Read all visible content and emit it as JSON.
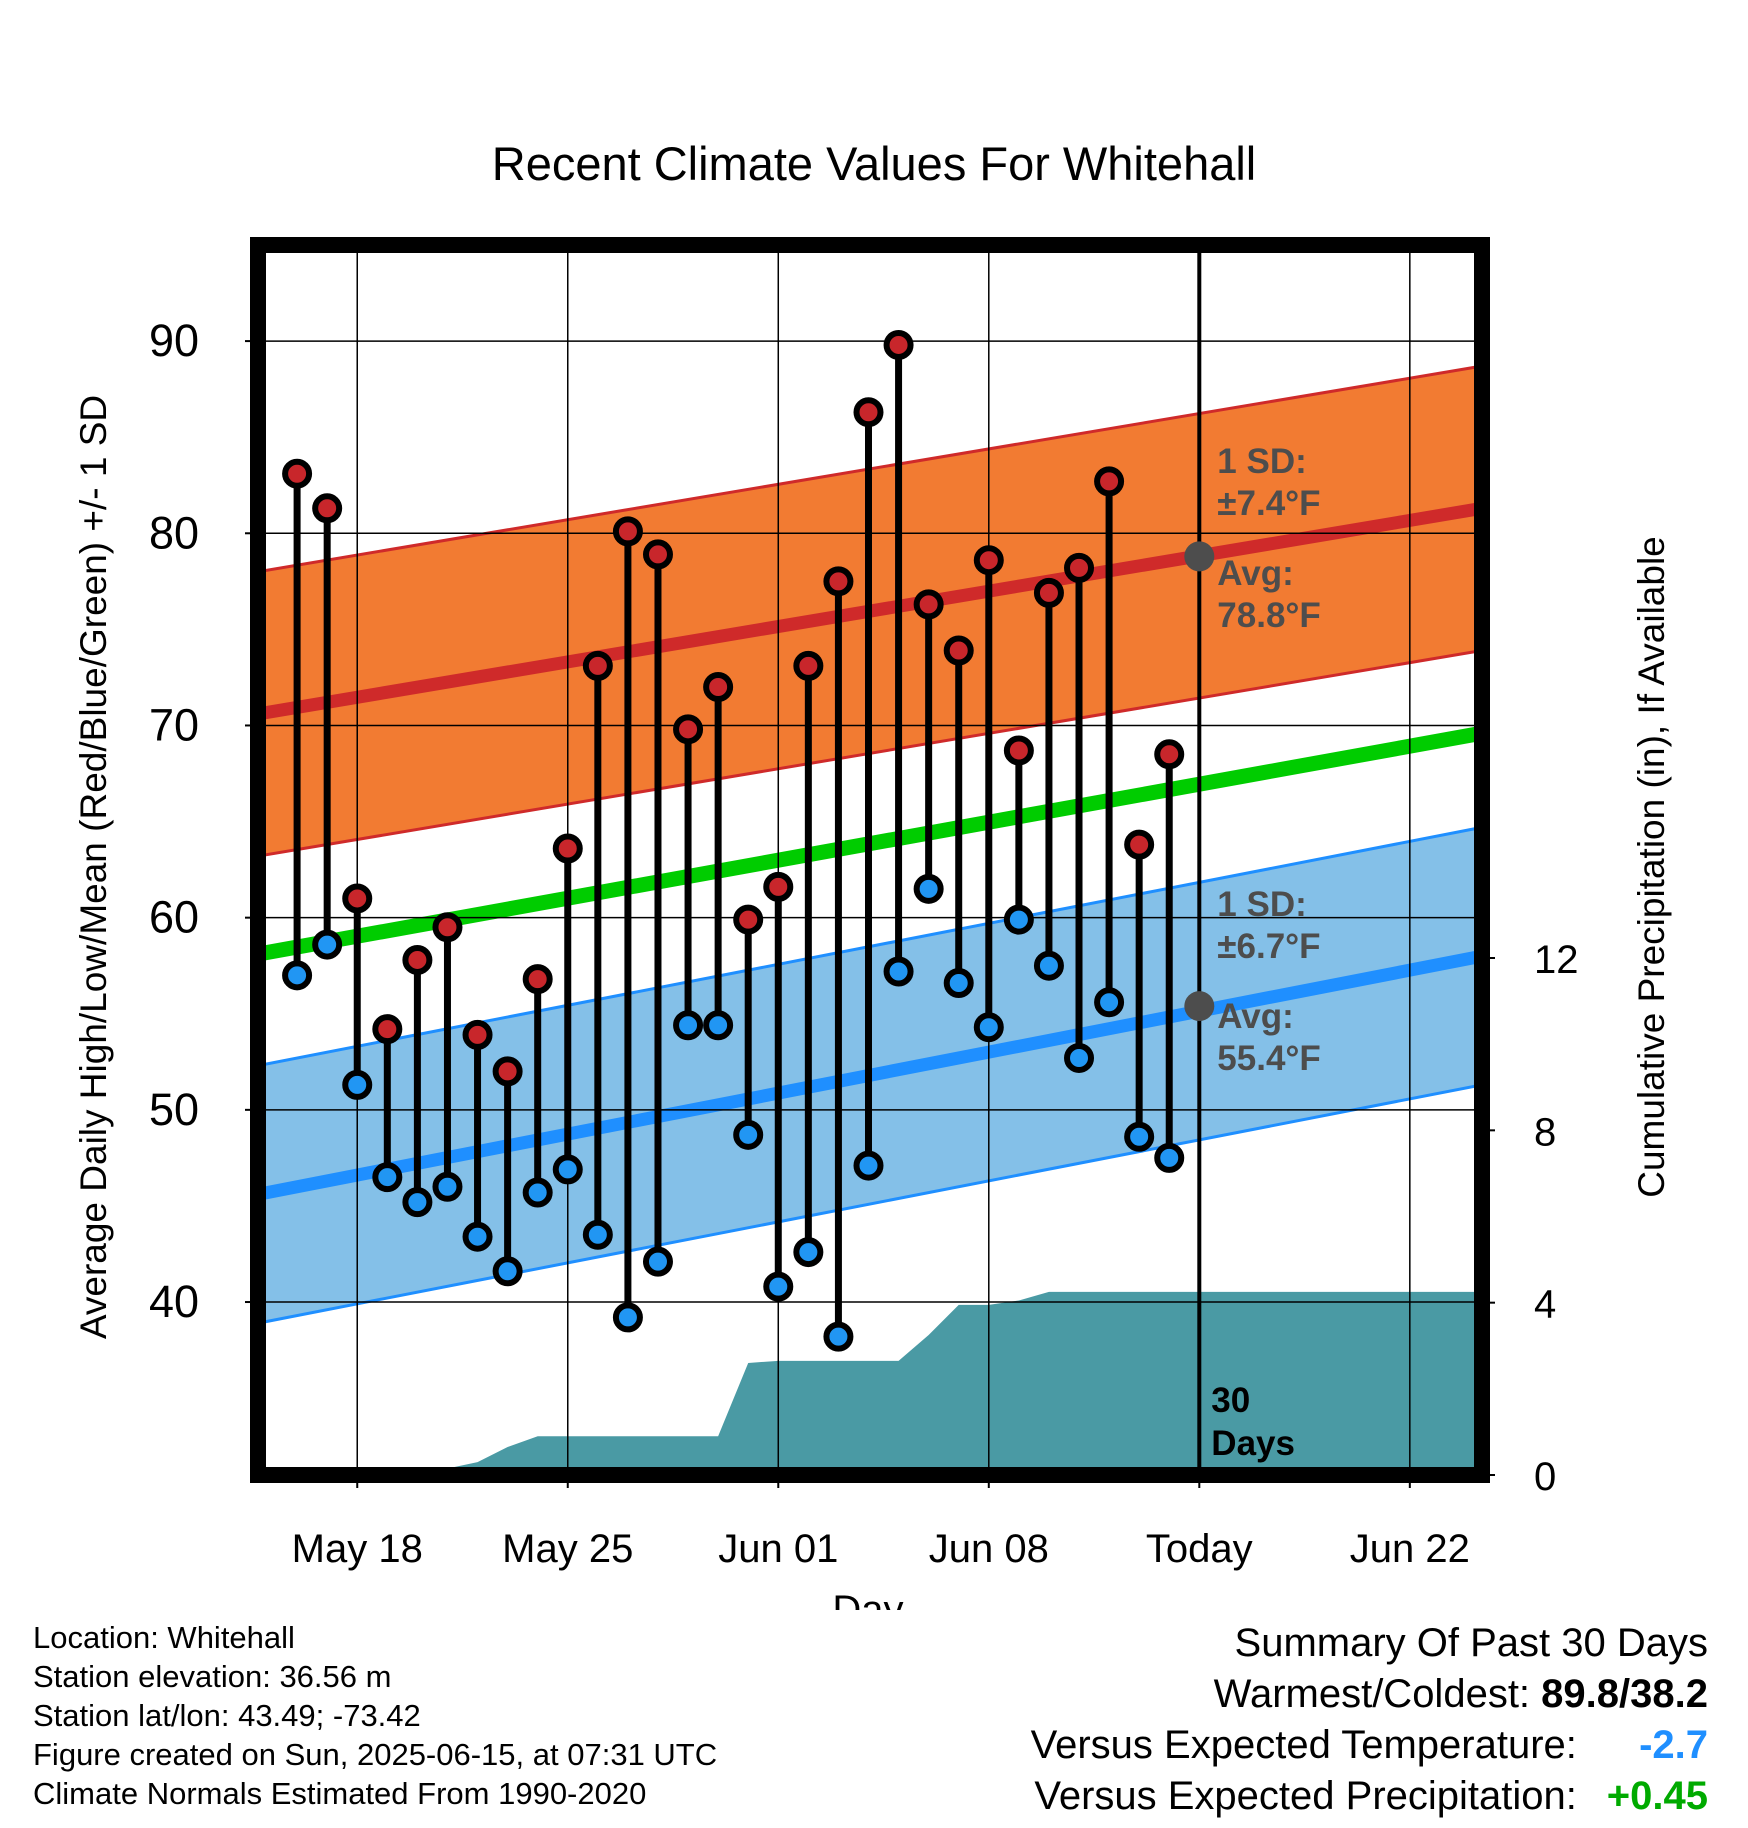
{
  "chart_data": {
    "type": "line",
    "title": "Recent Climate Values For Whitehall",
    "xlabel": "Day",
    "ylabel_left": "Average Daily High/Low/Mean (Red/Blue/Green) +/- 1 SD",
    "ylabel_right": "Cumulative Precipitation (in), If Available",
    "x_ticks": [
      {
        "day": 3,
        "label": "May 18"
      },
      {
        "day": 10,
        "label": "May 25"
      },
      {
        "day": 17,
        "label": "Jun 01"
      },
      {
        "day": 24,
        "label": "Jun 08"
      },
      {
        "day": 31,
        "label": "Today"
      },
      {
        "day": 38,
        "label": "Jun 22"
      }
    ],
    "xlim": [
      -0.3,
      40.4
    ],
    "ylim_left": [
      31,
      95
    ],
    "ylim_right": [
      0,
      28.55
    ],
    "y_ticks_left": [
      40,
      50,
      60,
      70,
      80,
      90
    ],
    "y_ticks_right": [
      0,
      4,
      8,
      12
    ],
    "today_day": 31,
    "normals": {
      "high_avg": {
        "start": 70.6,
        "end": 81.3
      },
      "high_sd": 7.4,
      "low_avg": {
        "start": 45.6,
        "end": 58.0
      },
      "low_sd": 6.7,
      "mean_avg": {
        "start": 58.1,
        "end": 69.6
      }
    },
    "daily": {
      "days": [
        1,
        2,
        3,
        4,
        5,
        6,
        7,
        8,
        9,
        10,
        11,
        12,
        13,
        14,
        15,
        16,
        17,
        18,
        19,
        20,
        21,
        22,
        23,
        24,
        25,
        26,
        27,
        28,
        29,
        30
      ],
      "highs": [
        83.1,
        81.3,
        61.0,
        54.2,
        57.8,
        59.5,
        53.9,
        52.0,
        56.8,
        63.6,
        73.1,
        80.1,
        78.9,
        69.8,
        72.0,
        59.9,
        61.6,
        73.1,
        77.5,
        86.3,
        89.8,
        76.3,
        73.9,
        78.6,
        68.7,
        76.9,
        78.2,
        82.7,
        63.8,
        68.5
      ],
      "lows": [
        57.0,
        58.6,
        51.3,
        46.5,
        45.2,
        46.0,
        43.4,
        41.6,
        45.7,
        46.9,
        43.5,
        39.2,
        42.1,
        54.4,
        54.4,
        48.7,
        40.8,
        42.6,
        38.2,
        47.1,
        57.2,
        61.5,
        56.6,
        54.3,
        59.9,
        57.5,
        52.7,
        55.6,
        48.6,
        47.5
      ]
    },
    "precipitation": {
      "days": [
        -0.3,
        1,
        2,
        3,
        4,
        5,
        6,
        7,
        8,
        9,
        10,
        11,
        12,
        13,
        14,
        15,
        16,
        17,
        18,
        19,
        20,
        21,
        22,
        23,
        24,
        25,
        26,
        27,
        28,
        29,
        30,
        31,
        40.4
      ],
      "values": [
        0,
        0,
        0,
        0.1,
        0.1,
        0.1,
        0.15,
        0.3,
        0.65,
        0.9,
        0.9,
        0.9,
        0.9,
        0.9,
        0.9,
        0.9,
        2.6,
        2.65,
        2.65,
        2.65,
        2.65,
        2.65,
        3.25,
        3.95,
        3.95,
        4.05,
        4.25,
        4.25,
        4.25,
        4.25,
        4.25,
        4.25,
        4.25
      ]
    },
    "annotations": {
      "high_sd_label": "1 SD:",
      "high_sd_value": "±7.4°F",
      "high_avg_label": "Avg:",
      "high_avg_value": "78.8°F",
      "high_avg_today": 78.8,
      "low_sd_label": "1 SD:",
      "low_sd_value": "±6.7°F",
      "low_avg_label": "Avg:",
      "low_avg_value": "55.4°F",
      "low_avg_today": 55.4,
      "window_line1": "30",
      "window_line2": "Days"
    },
    "colors": {
      "high_band": "#f27b32",
      "high_line": "#cf2a2a",
      "low_band": "#84c0e8",
      "low_line": "#1f8fff",
      "mean_line": "#00cc00",
      "precip": "#4a9aa4",
      "high_dot": "#c8262b",
      "low_dot": "#2196f3",
      "annotation_text": "#4d4d4d"
    },
    "grid": true
  },
  "info": {
    "location": "Location: Whitehall",
    "elevation": "Station elevation: 36.56 m",
    "latlon": "Station lat/lon: 43.49; -73.42",
    "created": "Figure created on Sun, 2025-06-15, at 07:31 UTC",
    "normals": "Climate Normals Estimated From 1990-2020"
  },
  "summary": {
    "title": "Summary Of Past 30 Days",
    "warm_cold_label": "Warmest/Coldest:",
    "warm_cold_value": "89.8/38.2",
    "temp_label": "Versus Expected Temperature:",
    "temp_value": "-2.7",
    "temp_color": "#1f8fff",
    "precip_label": "Versus Expected Precipitation:",
    "precip_value": "+0.45",
    "precip_color": "#00aa00"
  }
}
